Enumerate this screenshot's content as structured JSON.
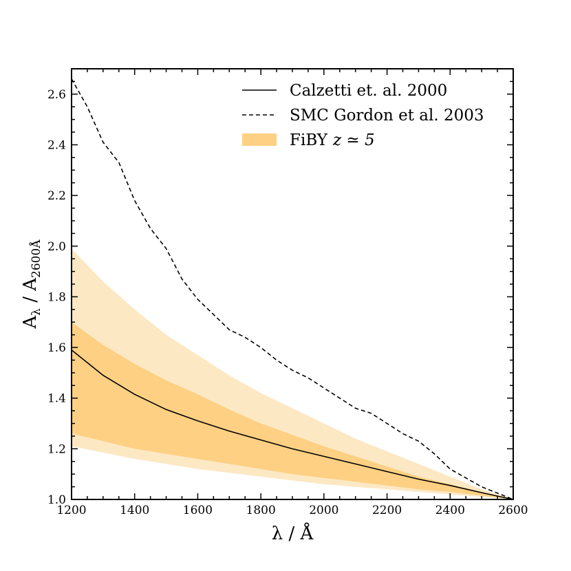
{
  "chart_data": {
    "type": "line",
    "xlabel": "λ / Å",
    "ylabel_main": "A",
    "ylabel_sub1": "λ",
    "ylabel_sep": " / A",
    "ylabel_sub2": "2600Å",
    "xlim": [
      1200,
      2600
    ],
    "ylim": [
      1.0,
      2.7
    ],
    "xticks": [
      1200,
      1400,
      1600,
      1800,
      2000,
      2200,
      2400,
      2600
    ],
    "yticks": [
      1.0,
      1.2,
      1.4,
      1.6,
      1.8,
      2.0,
      2.2,
      2.4,
      2.6
    ],
    "xtick_labels": [
      "1200",
      "1400",
      "1600",
      "1800",
      "2000",
      "2200",
      "2400",
      "2600"
    ],
    "ytick_labels": [
      "1.0",
      "1.2",
      "1.4",
      "1.6",
      "1.8",
      "2.0",
      "2.2",
      "2.4",
      "2.6"
    ],
    "colors": {
      "band_outer": "#fde8c4",
      "band_inner": "#fdd083",
      "line": "#000000"
    },
    "legend": {
      "position": "top-right",
      "entries": [
        {
          "label": "Calzetti et. al. 2000",
          "style": "solid"
        },
        {
          "label": "SMC Gordon et al. 2003",
          "style": "dashed"
        },
        {
          "label": "FiBY",
          "math": "z ≃ 5",
          "style": "band"
        }
      ]
    },
    "series": [
      {
        "name": "Calzetti et. al. 2000",
        "style": "solid",
        "x": [
          1200,
          1300,
          1400,
          1500,
          1600,
          1700,
          1800,
          1900,
          2000,
          2100,
          2200,
          2300,
          2400,
          2500,
          2600
        ],
        "y": [
          1.59,
          1.49,
          1.415,
          1.355,
          1.31,
          1.27,
          1.235,
          1.2,
          1.17,
          1.14,
          1.11,
          1.08,
          1.055,
          1.027,
          1.0
        ]
      },
      {
        "name": "SMC Gordon et al. 2003",
        "style": "dashed",
        "x": [
          1200,
          1250,
          1300,
          1350,
          1400,
          1450,
          1500,
          1550,
          1600,
          1650,
          1700,
          1750,
          1800,
          1850,
          1900,
          1950,
          2000,
          2050,
          2100,
          2150,
          2200,
          2250,
          2300,
          2350,
          2400,
          2450,
          2500,
          2550,
          2600
        ],
        "y": [
          2.66,
          2.55,
          2.41,
          2.33,
          2.18,
          2.07,
          1.99,
          1.87,
          1.79,
          1.73,
          1.67,
          1.64,
          1.6,
          1.55,
          1.51,
          1.48,
          1.44,
          1.4,
          1.36,
          1.34,
          1.3,
          1.26,
          1.23,
          1.18,
          1.12,
          1.085,
          1.05,
          1.025,
          1.0
        ]
      }
    ],
    "bands": [
      {
        "name": "FiBY z≃5 outer",
        "x": [
          1200,
          1300,
          1400,
          1500,
          1600,
          1700,
          1800,
          1900,
          2000,
          2100,
          2200,
          2300,
          2400,
          2500,
          2600
        ],
        "upper": [
          1.99,
          1.86,
          1.75,
          1.65,
          1.57,
          1.49,
          1.42,
          1.36,
          1.3,
          1.24,
          1.19,
          1.14,
          1.09,
          1.04,
          1.0
        ],
        "lower": [
          1.21,
          1.185,
          1.16,
          1.14,
          1.12,
          1.105,
          1.09,
          1.075,
          1.06,
          1.05,
          1.04,
          1.03,
          1.02,
          1.01,
          1.0
        ]
      },
      {
        "name": "FiBY z≃5 inner",
        "x": [
          1200,
          1300,
          1400,
          1500,
          1600,
          1700,
          1800,
          1900,
          2000,
          2100,
          2200,
          2300,
          2400,
          2500,
          2600
        ],
        "upper": [
          1.7,
          1.61,
          1.535,
          1.47,
          1.415,
          1.355,
          1.3,
          1.255,
          1.21,
          1.17,
          1.13,
          1.09,
          1.06,
          1.03,
          1.0
        ],
        "lower": [
          1.26,
          1.23,
          1.2,
          1.18,
          1.16,
          1.14,
          1.12,
          1.1,
          1.085,
          1.07,
          1.055,
          1.04,
          1.03,
          1.015,
          1.0
        ]
      }
    ]
  }
}
